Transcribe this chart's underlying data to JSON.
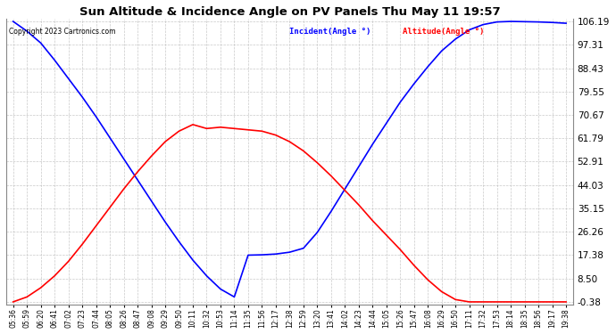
{
  "title": "Sun Altitude & Incidence Angle on PV Panels Thu May 11 19:57",
  "copyright": "Copyright 2023 Cartronics.com",
  "legend_incident": "Incident(Angle °)",
  "legend_altitude": "Altitude(Angle °)",
  "incident_legend_color": "blue",
  "altitude_legend_color": "red",
  "incident_color": "red",
  "altitude_color": "blue",
  "ymin": -0.38,
  "ymax": 106.19,
  "yticks": [
    106.19,
    97.31,
    88.43,
    79.55,
    70.67,
    61.79,
    52.91,
    44.03,
    35.15,
    26.26,
    17.38,
    8.5,
    -0.38
  ],
  "background_color": "#ffffff",
  "grid_color": "#bbbbbb",
  "x_labels": [
    "05:36",
    "05:59",
    "06:20",
    "06:41",
    "07:02",
    "07:23",
    "07:44",
    "08:05",
    "08:26",
    "08:47",
    "09:08",
    "09:29",
    "09:50",
    "10:11",
    "10:32",
    "10:53",
    "11:14",
    "11:35",
    "11:56",
    "12:17",
    "12:38",
    "12:59",
    "13:20",
    "13:41",
    "14:02",
    "14:23",
    "14:44",
    "15:05",
    "15:26",
    "15:47",
    "16:08",
    "16:29",
    "16:50",
    "17:11",
    "17:32",
    "17:53",
    "18:14",
    "18:35",
    "18:56",
    "19:17",
    "19:38"
  ],
  "altitude_data": [
    106.19,
    102.5,
    98.0,
    91.5,
    84.5,
    77.5,
    70.0,
    62.0,
    54.0,
    46.0,
    38.0,
    30.0,
    22.5,
    15.5,
    9.5,
    4.5,
    1.5,
    17.38,
    17.5,
    17.8,
    18.5,
    20.0,
    26.0,
    34.0,
    42.5,
    51.0,
    59.5,
    67.5,
    75.5,
    82.5,
    89.0,
    95.0,
    99.5,
    103.0,
    105.0,
    106.0,
    106.19,
    106.1,
    106.0,
    105.8,
    105.5
  ],
  "incident_data": [
    -0.38,
    1.5,
    5.0,
    9.5,
    15.0,
    21.5,
    28.5,
    35.5,
    42.5,
    49.0,
    55.0,
    60.5,
    64.5,
    67.0,
    65.5,
    66.0,
    65.5,
    65.0,
    64.5,
    63.0,
    60.5,
    57.0,
    52.5,
    47.5,
    42.0,
    36.5,
    30.5,
    25.0,
    19.5,
    13.5,
    8.0,
    3.5,
    0.5,
    -0.38,
    -0.38,
    -0.38,
    -0.38,
    -0.38,
    -0.38,
    -0.38,
    -0.38
  ]
}
